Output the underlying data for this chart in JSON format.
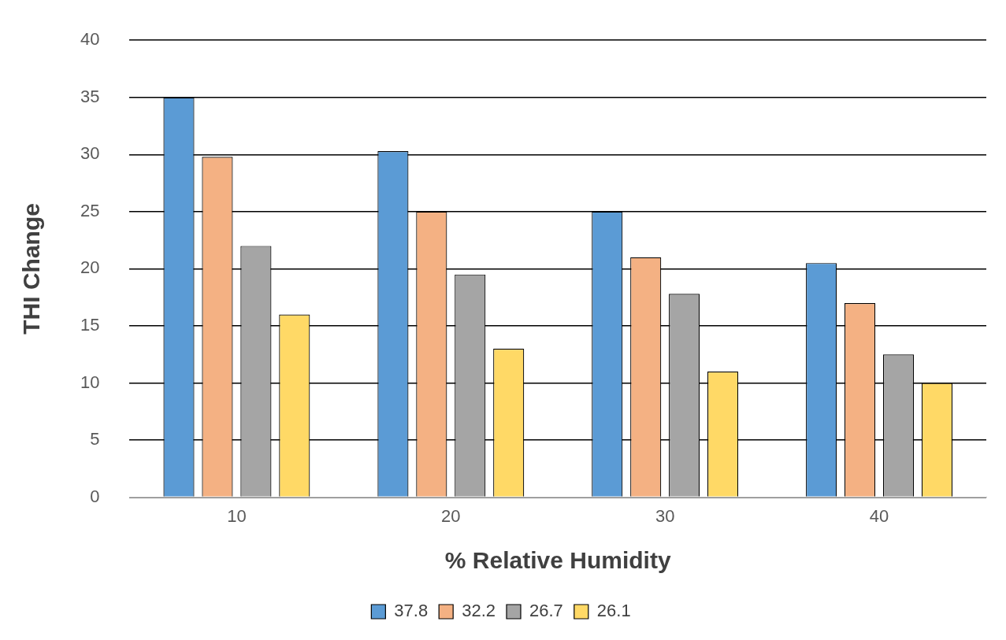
{
  "chart_data": {
    "type": "bar",
    "xlabel": "% Relative Humidity",
    "ylabel": "THI Change",
    "categories": [
      "10",
      "20",
      "30",
      "40"
    ],
    "series": [
      {
        "name": "37.8",
        "color": "#5b9bd5",
        "values": [
          35,
          30.3,
          25,
          20.5
        ]
      },
      {
        "name": "32.2",
        "color": "#f4b183",
        "values": [
          29.8,
          25,
          21,
          17
        ]
      },
      {
        "name": "26.7",
        "color": "#a5a5a5",
        "values": [
          22,
          19.5,
          17.8,
          12.5
        ]
      },
      {
        "name": "26.1",
        "color": "#ffd966",
        "values": [
          16,
          13,
          11,
          10
        ]
      }
    ],
    "ylim": [
      0,
      40
    ],
    "yticks": [
      0,
      5,
      10,
      15,
      20,
      25,
      30,
      35,
      40
    ],
    "grid": "y",
    "legend": "bottom"
  }
}
